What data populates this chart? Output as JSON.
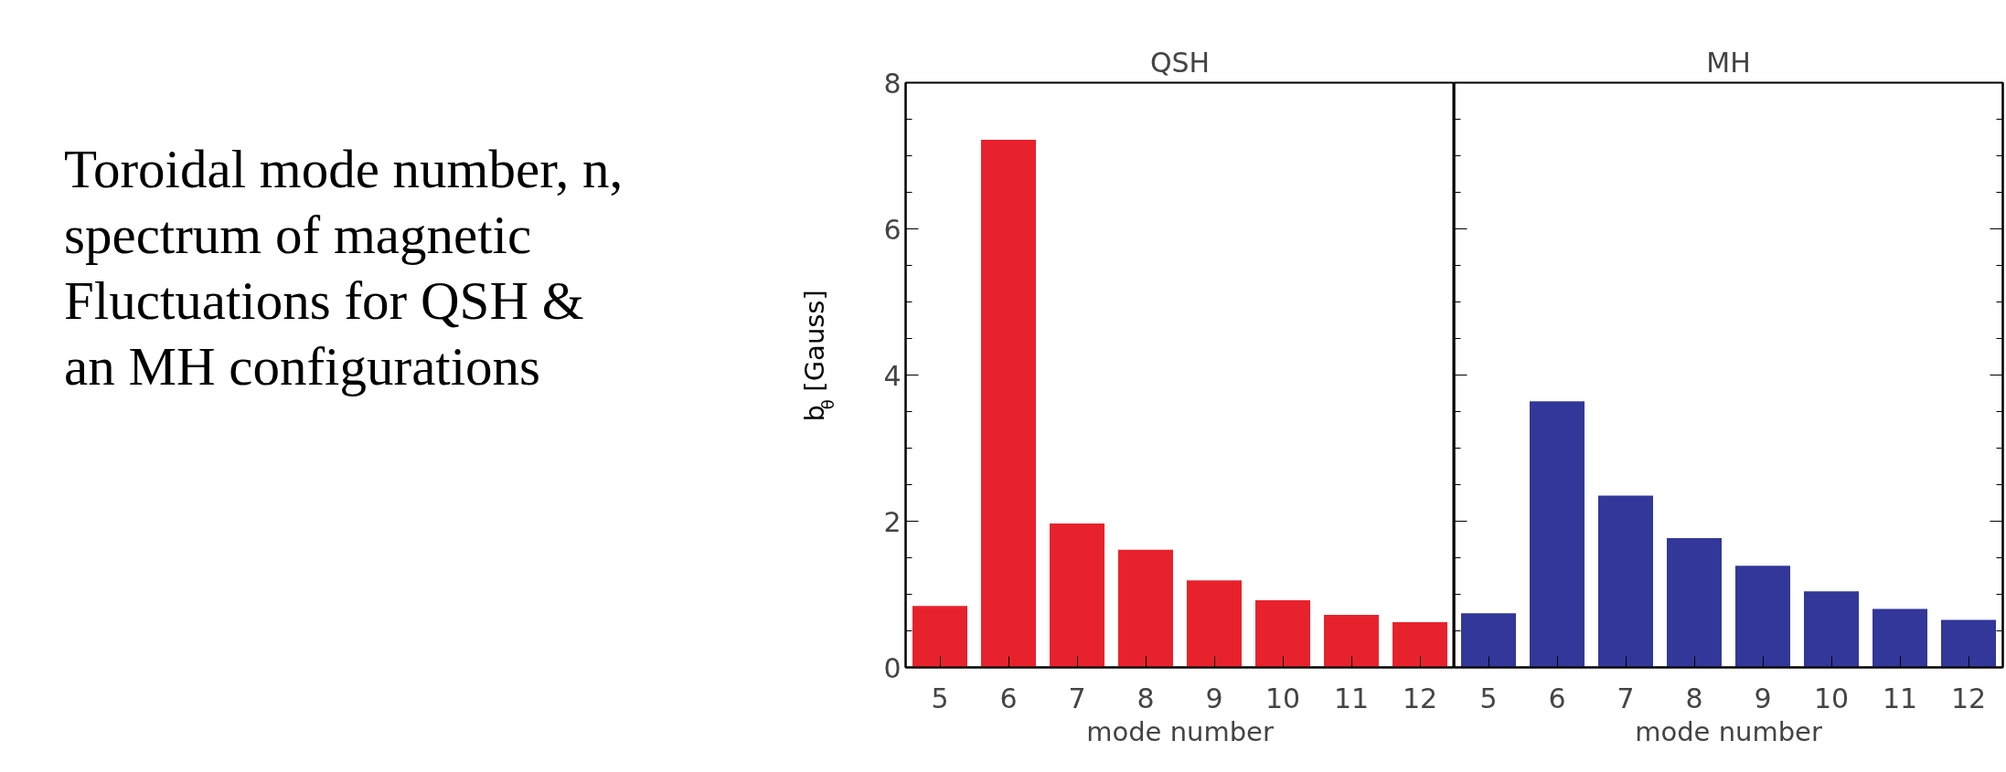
{
  "chart_data": [
    {
      "type": "other",
      "annotations": [
        "Toroidal mode number, n,\nspectrum of magnetic\nFluctuations for QSH &\nan MH configurations"
      ]
    },
    {
      "type": "bar",
      "title": "QSH",
      "xlabel": "mode number",
      "ylabel": "b$_{θ}$ [Gauss]",
      "categories": [
        "5",
        "6",
        "7",
        "8",
        "9",
        "10",
        "11",
        "12"
      ],
      "values": [
        0.84,
        7.22,
        1.97,
        1.61,
        1.19,
        0.92,
        0.72,
        0.62
      ],
      "color": "#e8222d",
      "ylim": [
        0,
        8
      ],
      "yticks": [
        0,
        2,
        4,
        6,
        8
      ],
      "grid": false
    },
    {
      "type": "bar",
      "title": "MH",
      "xlabel": "mode number",
      "categories": [
        "5",
        "6",
        "7",
        "8",
        "9",
        "10",
        "11",
        "12"
      ],
      "values": [
        0.74,
        3.64,
        2.35,
        1.77,
        1.39,
        1.04,
        0.8,
        0.65
      ],
      "color": "#333799",
      "ylim": [
        0,
        8
      ],
      "yticks": [
        0,
        2,
        4,
        6,
        8
      ],
      "grid": false,
      "tick_labels": "x"
    }
  ]
}
